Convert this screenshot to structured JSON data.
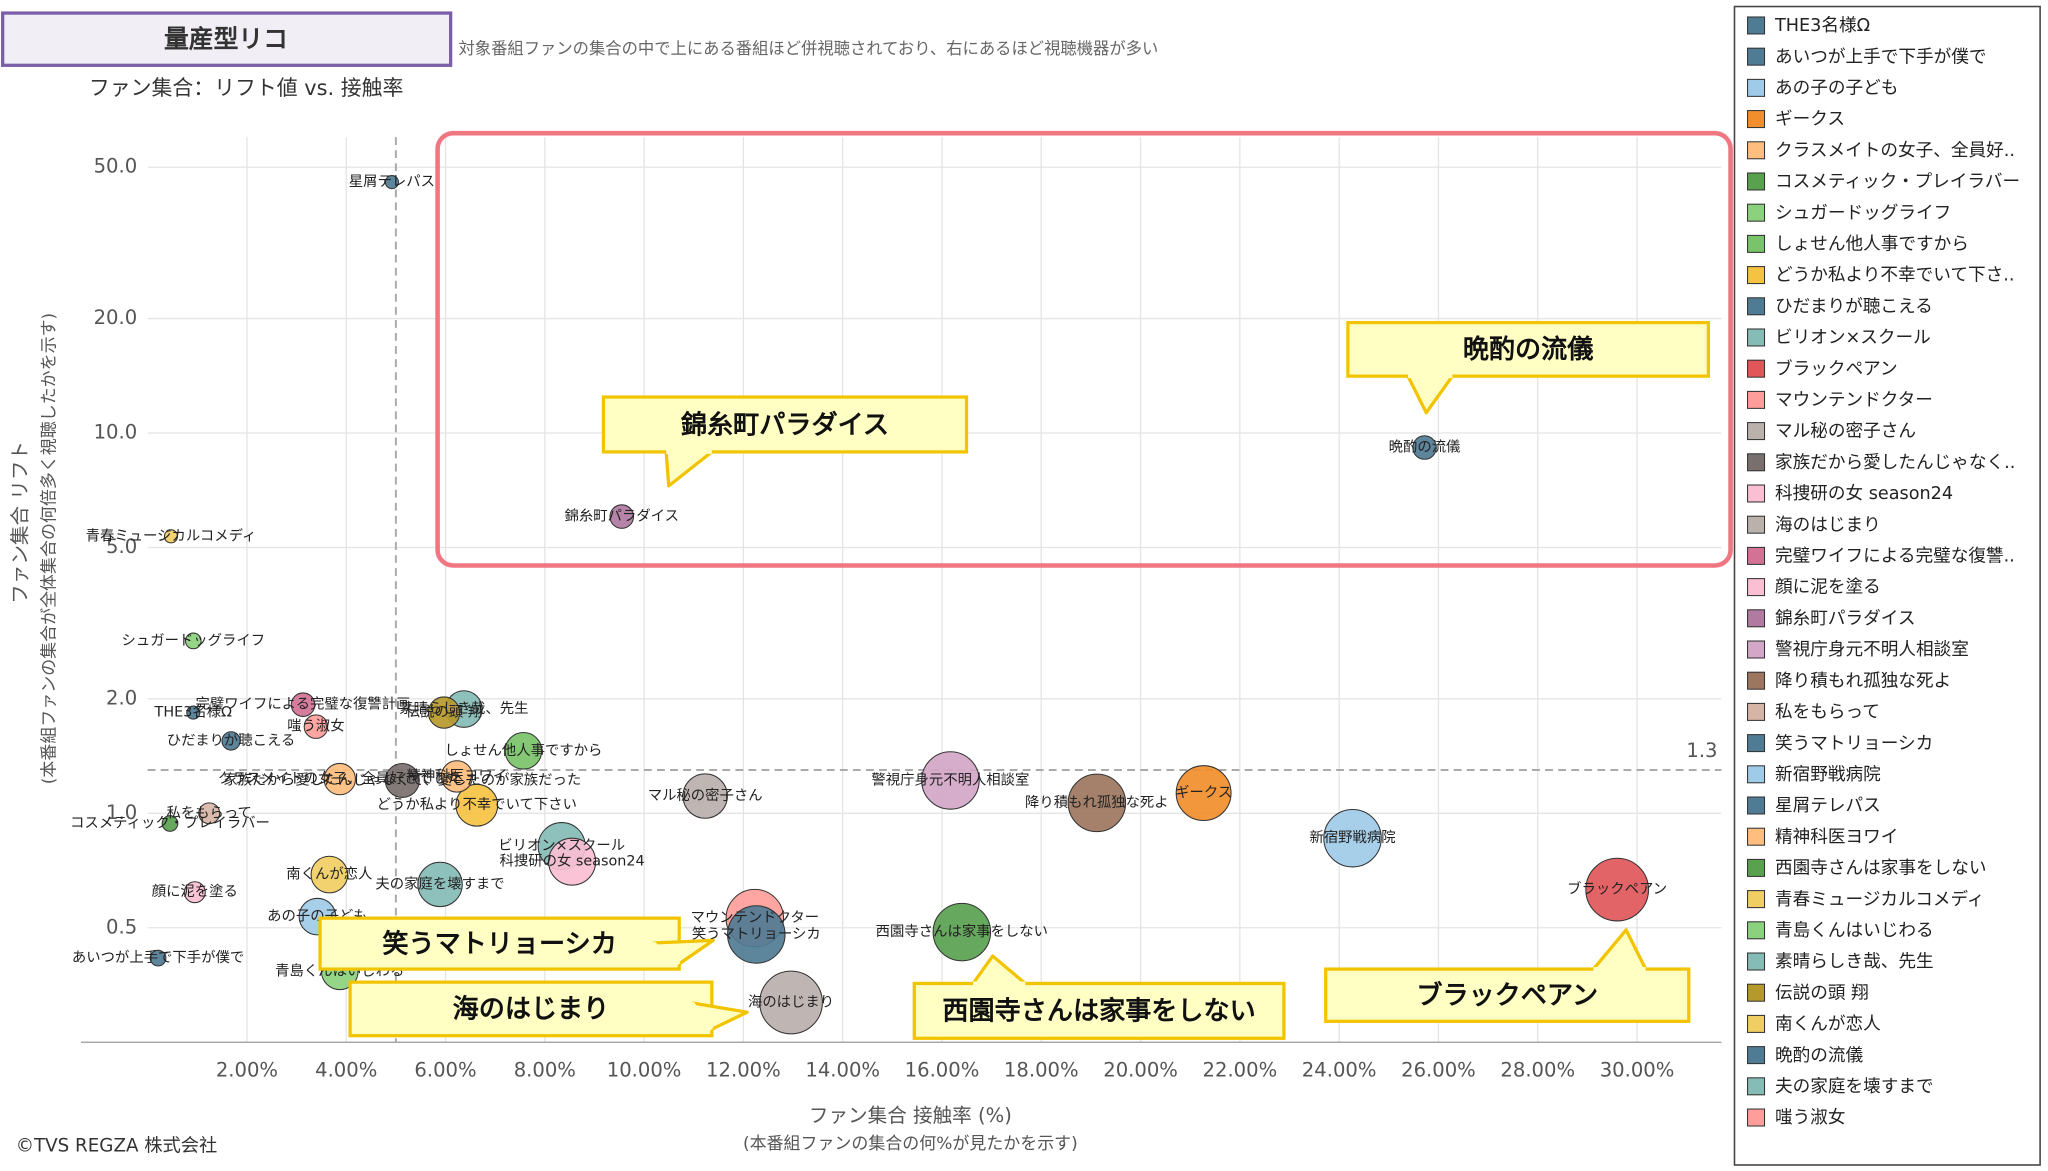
{
  "header": {
    "title": "量産型リコ",
    "subtitle": "対象番組ファンの集合の中で上にある番組ほど併視聴されており、右にあるほど視聴機器が多い"
  },
  "footer": {
    "copyright": "©TVS REGZA 株式会社"
  },
  "chart_data": {
    "type": "scatter",
    "title": "ファン集合：リフト値 vs. 接触率",
    "x_label": "ファン集合 接触率 (%)",
    "x_sublabel": "(本番組ファンの集合の何%が見たかを示す)",
    "y_label": "ファン集合 リフト",
    "y_sublabel": "(本番組ファンの集合が全体集合の何倍多く視聴したかを示す)",
    "xlim": [
      0,
      31.7
    ],
    "ylim": [
      0.25,
      60
    ],
    "y_log": true,
    "grid": true,
    "legend": "right",
    "xticks": [
      {
        "value": 2,
        "label": "2.00%"
      },
      {
        "value": 4,
        "label": "4.00%"
      },
      {
        "value": 6,
        "label": "6.00%"
      },
      {
        "value": 8,
        "label": "8.00%"
      },
      {
        "value": 10,
        "label": "10.00%"
      },
      {
        "value": 12,
        "label": "12.00%"
      },
      {
        "value": 14,
        "label": "14.00%"
      },
      {
        "value": 16,
        "label": "16.00%"
      },
      {
        "value": 18,
        "label": "18.00%"
      },
      {
        "value": 20,
        "label": "20.00%"
      },
      {
        "value": 22,
        "label": "22.00%"
      },
      {
        "value": 24,
        "label": "24.00%"
      },
      {
        "value": 26,
        "label": "26.00%"
      },
      {
        "value": 28,
        "label": "28.00%"
      },
      {
        "value": 30,
        "label": "30.00%"
      }
    ],
    "yticks": [
      0.5,
      {
        "value": 1,
        "label": "1.0"
      },
      {
        "value": 2,
        "label": "2.0"
      },
      {
        "value": 5,
        "label": "5.0"
      },
      {
        "value": 10,
        "label": "10.0"
      },
      {
        "value": 20,
        "label": "20.0"
      },
      {
        "value": 50,
        "label": "50.0"
      }
    ],
    "reference_lines": {
      "x": 5,
      "y": 1.3
    },
    "series": [
      {
        "name": "THE3名様Ω",
        "color": "#4f7b94",
        "x": 0.92,
        "y": 1.84,
        "size": 5
      },
      {
        "name": "あいつが上手で下手が僕で",
        "color": "#4f7b94",
        "x": 0.21,
        "y": 0.416,
        "size": 6
      },
      {
        "name": "あの子の子ども",
        "color": "#a0cbe8",
        "x": 3.42,
        "y": 0.535,
        "size": 14
      },
      {
        "name": "ギークス",
        "color": "#f28e2b",
        "x": 21.27,
        "y": 1.13,
        "size": 21
      },
      {
        "name": "クラスメイトの女子、全員好..",
        "label": "クラスメイトの女子、全員好きでした",
        "color": "#ffbe7d",
        "x": 3.87,
        "y": 1.23,
        "size": 12
      },
      {
        "name": "コスメティック・プレイラバー",
        "color": "#59a14f",
        "x": 0.45,
        "y": 0.94,
        "size": 6
      },
      {
        "name": "シュガードッグライフ",
        "color": "#8cd17d",
        "x": 0.92,
        "y": 2.84,
        "size": 6
      },
      {
        "name": "しょせん他人事ですから",
        "color": "#79c36a",
        "x": 7.57,
        "y": 1.46,
        "size": 14
      },
      {
        "name": "どうか私より不幸でいて下さ..",
        "label": "どうか私より不幸でいて下さい",
        "color": "#f5c242",
        "x": 6.63,
        "y": 1.05,
        "size": 16
      },
      {
        "name": "ひだまりが聴こえる",
        "color": "#4f7b94",
        "x": 1.68,
        "y": 1.55,
        "size": 7
      },
      {
        "name": "ビリオン×スクール",
        "color": "#86bcb6",
        "x": 8.34,
        "y": 0.82,
        "size": 18
      },
      {
        "name": "ブラックペアン",
        "color": "#e15759",
        "x": 29.6,
        "y": 0.63,
        "size": 24
      },
      {
        "name": "マウンテンドクター",
        "color": "#ff9d9a",
        "x": 12.23,
        "y": 0.53,
        "size": 22
      },
      {
        "name": "マル秘の密子さん",
        "color": "#bab0ac",
        "x": 11.23,
        "y": 1.11,
        "size": 17
      },
      {
        "name": "家族だから愛したんじゃなく..",
        "label": "家族だから愛したんじゃなくて、愛したのが家族だった",
        "color": "#79706e",
        "x": 5.13,
        "y": 1.22,
        "size": 13
      },
      {
        "name": "科捜研の女 season24",
        "color": "#fabfd2",
        "x": 8.55,
        "y": 0.746,
        "size": 18
      },
      {
        "name": "海のはじまり",
        "color": "#bab0ac",
        "x": 12.96,
        "y": 0.318,
        "size": 24
      },
      {
        "name": "完璧ワイフによる完璧な復讐..",
        "label": "完璧ワイフによる完璧な復讐計画",
        "color": "#d37295",
        "x": 3.13,
        "y": 1.93,
        "size": 9
      },
      {
        "name": "顔に泥を塗る",
        "color": "#fabfd2",
        "x": 0.95,
        "y": 0.62,
        "size": 8
      },
      {
        "name": "錦糸町パラダイス",
        "color": "#b07aa1",
        "x": 9.55,
        "y": 6.03,
        "size": 9
      },
      {
        "name": "警視庁身元不明人相談室",
        "color": "#d4a6c8",
        "x": 16.17,
        "y": 1.22,
        "size": 22
      },
      {
        "name": "降り積もれ孤独な死よ",
        "color": "#9d7660",
        "x": 19.12,
        "y": 1.065,
        "size": 22
      },
      {
        "name": "私をもらって",
        "color": "#d7b5a6",
        "x": 1.24,
        "y": 1.0,
        "size": 8
      },
      {
        "name": "笑うマトリョーシカ",
        "color": "#4f7b94",
        "x": 12.26,
        "y": 0.48,
        "size": 22
      },
      {
        "name": "新宿野戦病院",
        "color": "#a0cbe8",
        "x": 24.27,
        "y": 0.86,
        "size": 22
      },
      {
        "name": "星屑テレパス",
        "color": "#4f7b94",
        "x": 4.92,
        "y": 45.7,
        "size": 5
      },
      {
        "name": "精神科医ヨワイ",
        "color": "#ffbe7d",
        "x": 6.23,
        "y": 1.25,
        "size": 12
      },
      {
        "name": "西園寺さんは家事をしない",
        "color": "#59a14f",
        "x": 16.4,
        "y": 0.487,
        "size": 22
      },
      {
        "name": "青春ミュージカルコメディ",
        "color": "#f1ce63",
        "x": 0.47,
        "y": 5.35,
        "size": 5
      },
      {
        "name": "青島くんはいじわる",
        "color": "#8cd17d",
        "x": 3.87,
        "y": 0.384,
        "size": 14
      },
      {
        "name": "素晴らしき哉、先生",
        "color": "#86bcb6",
        "x": 6.37,
        "y": 1.88,
        "size": 14
      },
      {
        "name": "伝説の頭 翔",
        "color": "#b6992d",
        "x": 5.97,
        "y": 1.84,
        "size": 12
      },
      {
        "name": "南くんが恋人",
        "color": "#f1ce63",
        "x": 3.66,
        "y": 0.69,
        "size": 14
      },
      {
        "name": "晩酌の流儀",
        "color": "#4f7b94",
        "x": 25.72,
        "y": 9.16,
        "size": 9
      },
      {
        "name": "夫の家庭を壊すまで",
        "color": "#86bcb6",
        "x": 5.89,
        "y": 0.65,
        "size": 17
      },
      {
        "name": "嗤う淑女",
        "color": "#ff9d9a",
        "x": 3.39,
        "y": 1.69,
        "size": 9
      }
    ],
    "annotations": [
      "錦糸町パラダイス",
      "晩酌の流儀",
      "笑うマトリョーシカ",
      "海のはじまり",
      "西園寺さんは家事をしない",
      "ブラックペアン"
    ]
  }
}
